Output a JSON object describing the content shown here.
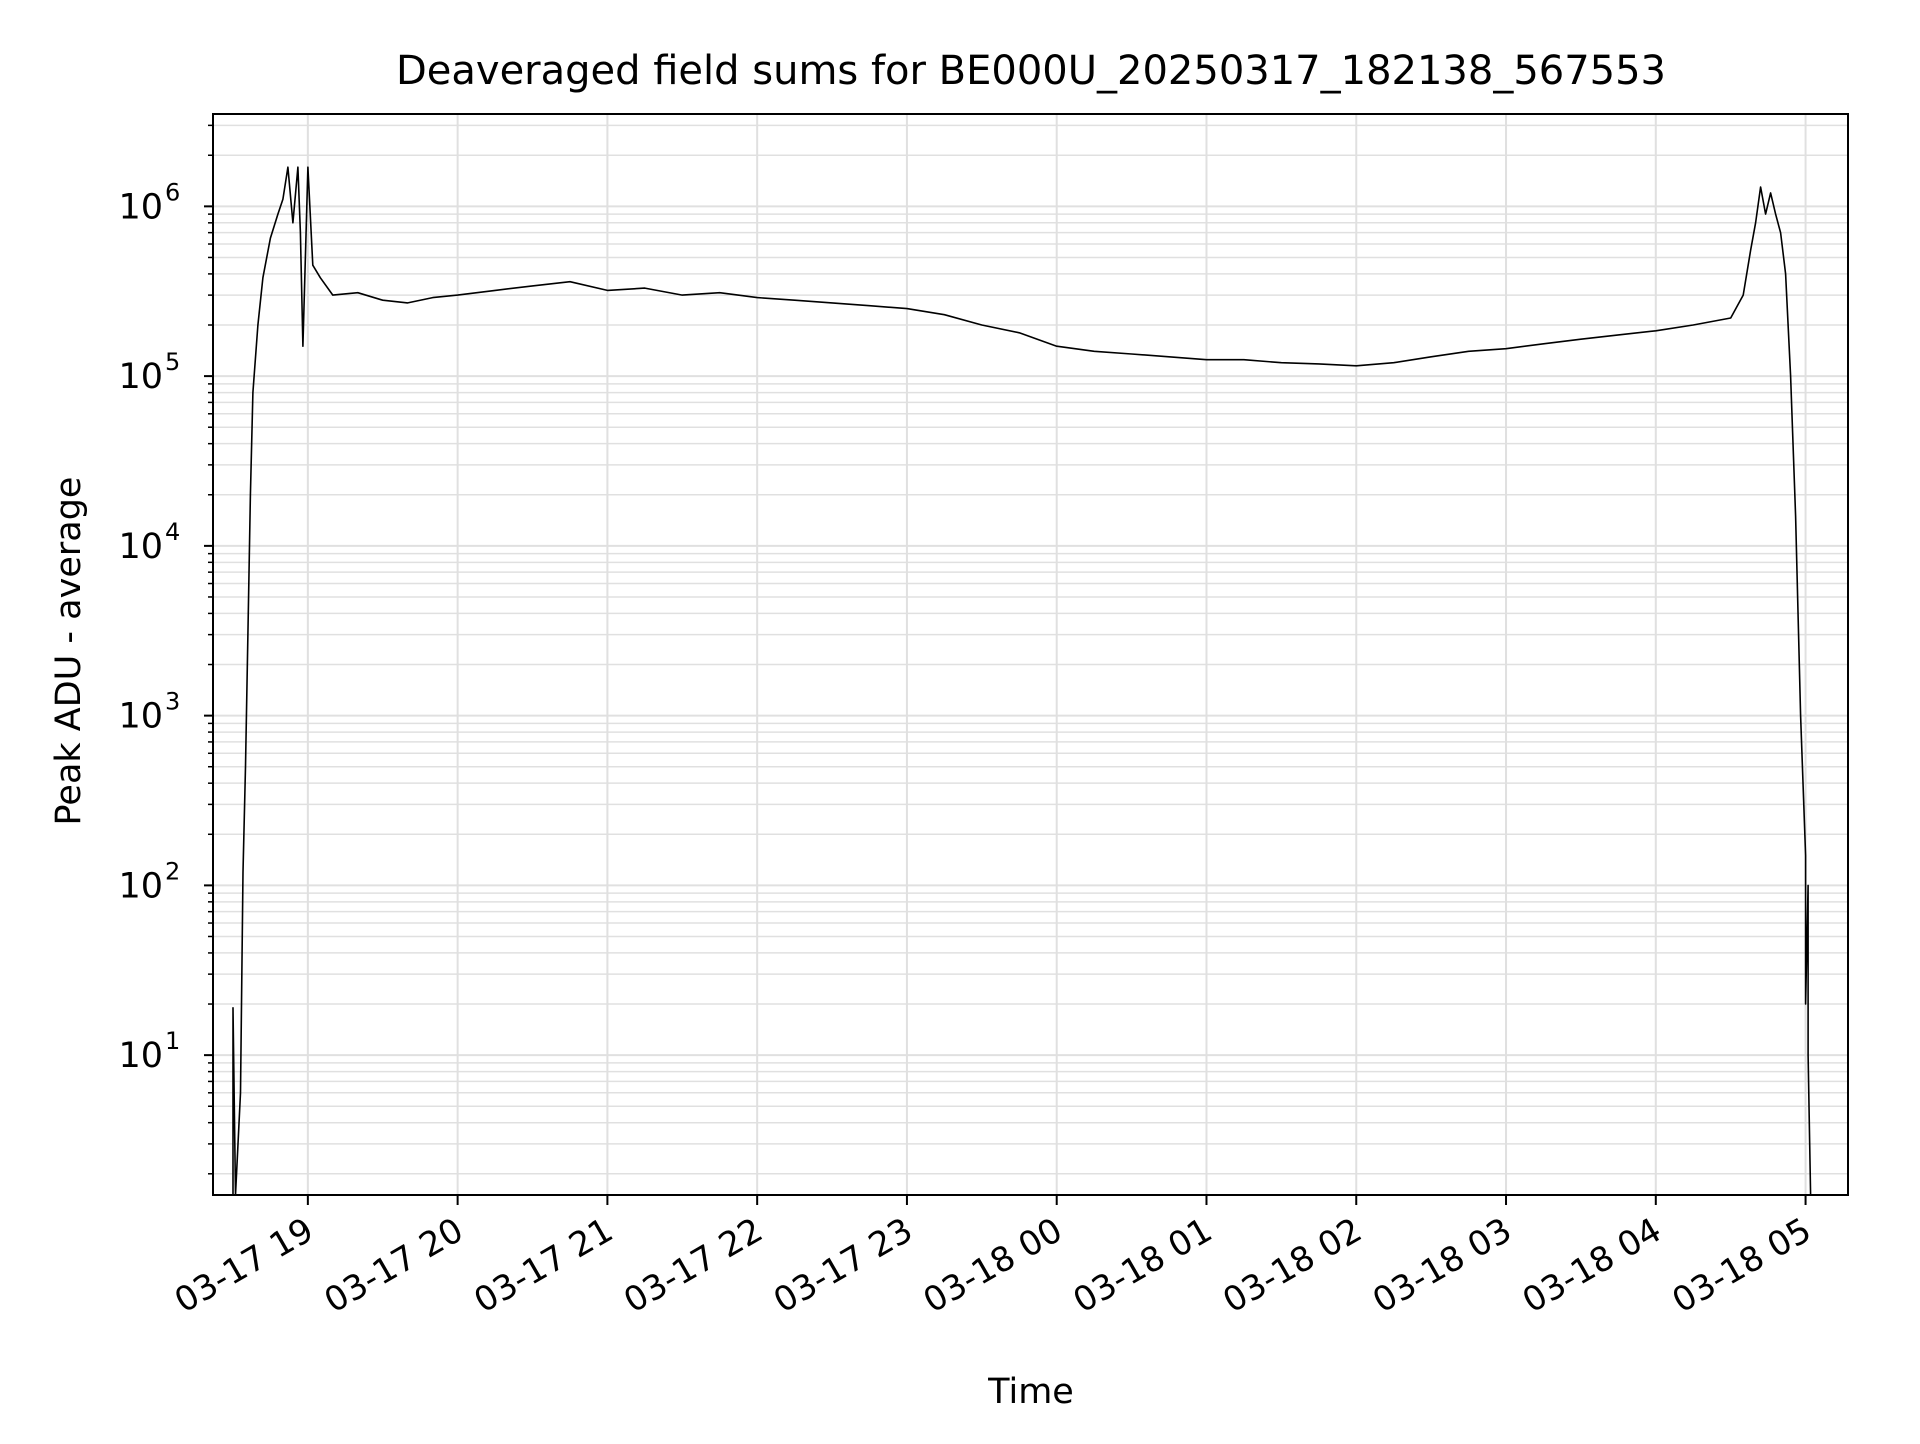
{
  "chart_data": {
    "type": "line",
    "title": "Deaveraged field sums for BE000U_20250317_182138_567553",
    "xlabel": "Time",
    "ylabel": "Peak ADU - average",
    "xlim": [
      "2025-03-17 18:22",
      "2025-03-18 05:17"
    ],
    "ylim": [
      1.5,
      3500000
    ],
    "yscale": "log",
    "grid": true,
    "grid_minor": true,
    "line_color": "#000000",
    "grid_color": "#e0e0e0",
    "x_ticks": [
      {
        "value": "2025-03-17 19:00",
        "label": "03-17 19"
      },
      {
        "value": "2025-03-17 20:00",
        "label": "03-17 20"
      },
      {
        "value": "2025-03-17 21:00",
        "label": "03-17 21"
      },
      {
        "value": "2025-03-17 22:00",
        "label": "03-17 22"
      },
      {
        "value": "2025-03-17 23:00",
        "label": "03-17 23"
      },
      {
        "value": "2025-03-18 00:00",
        "label": "03-18 00"
      },
      {
        "value": "2025-03-18 01:00",
        "label": "03-18 01"
      },
      {
        "value": "2025-03-18 02:00",
        "label": "03-18 02"
      },
      {
        "value": "2025-03-18 03:00",
        "label": "03-18 03"
      },
      {
        "value": "2025-03-18 04:00",
        "label": "03-18 04"
      },
      {
        "value": "2025-03-18 05:00",
        "label": "03-18 05"
      }
    ],
    "y_ticks": [
      {
        "value": 10,
        "base": "10",
        "exp": "1"
      },
      {
        "value": 100,
        "base": "10",
        "exp": "2"
      },
      {
        "value": 1000,
        "base": "10",
        "exp": "3"
      },
      {
        "value": 10000,
        "base": "10",
        "exp": "4"
      },
      {
        "value": 100000,
        "base": "10",
        "exp": "5"
      },
      {
        "value": 1000000,
        "base": "10",
        "exp": "6"
      }
    ],
    "series": [
      {
        "points": [
          [
            "2025-03-17 18:30",
            1.5
          ],
          [
            "2025-03-17 18:30",
            19
          ],
          [
            "2025-03-17 18:31",
            1.5
          ],
          [
            "2025-03-17 18:33",
            6
          ],
          [
            "2025-03-17 18:34",
            120
          ],
          [
            "2025-03-17 18:35",
            500
          ],
          [
            "2025-03-17 18:36",
            3000
          ],
          [
            "2025-03-17 18:37",
            20000
          ],
          [
            "2025-03-17 18:38",
            80000
          ],
          [
            "2025-03-17 18:40",
            200000
          ],
          [
            "2025-03-17 18:42",
            380000
          ],
          [
            "2025-03-17 18:45",
            650000
          ],
          [
            "2025-03-17 18:48",
            900000
          ],
          [
            "2025-03-17 18:50",
            1100000
          ],
          [
            "2025-03-17 18:52",
            1700000
          ],
          [
            "2025-03-17 18:54",
            800000
          ],
          [
            "2025-03-17 18:56",
            1700000
          ],
          [
            "2025-03-17 18:57",
            700000
          ],
          [
            "2025-03-17 18:58",
            150000
          ],
          [
            "2025-03-17 19:00",
            1700000
          ],
          [
            "2025-03-17 19:02",
            450000
          ],
          [
            "2025-03-17 19:05",
            380000
          ],
          [
            "2025-03-17 19:10",
            300000
          ],
          [
            "2025-03-17 19:20",
            310000
          ],
          [
            "2025-03-17 19:30",
            280000
          ],
          [
            "2025-03-17 19:40",
            270000
          ],
          [
            "2025-03-17 19:50",
            290000
          ],
          [
            "2025-03-17 20:00",
            300000
          ],
          [
            "2025-03-17 20:15",
            320000
          ],
          [
            "2025-03-17 20:30",
            340000
          ],
          [
            "2025-03-17 20:45",
            360000
          ],
          [
            "2025-03-17 21:00",
            320000
          ],
          [
            "2025-03-17 21:15",
            330000
          ],
          [
            "2025-03-17 21:30",
            300000
          ],
          [
            "2025-03-17 21:45",
            310000
          ],
          [
            "2025-03-17 22:00",
            290000
          ],
          [
            "2025-03-17 22:15",
            280000
          ],
          [
            "2025-03-17 22:30",
            270000
          ],
          [
            "2025-03-17 22:45",
            260000
          ],
          [
            "2025-03-17 23:00",
            250000
          ],
          [
            "2025-03-17 23:15",
            230000
          ],
          [
            "2025-03-17 23:30",
            200000
          ],
          [
            "2025-03-17 23:45",
            180000
          ],
          [
            "2025-03-18 00:00",
            150000
          ],
          [
            "2025-03-18 00:15",
            140000
          ],
          [
            "2025-03-18 00:30",
            135000
          ],
          [
            "2025-03-18 00:45",
            130000
          ],
          [
            "2025-03-18 01:00",
            125000
          ],
          [
            "2025-03-18 01:15",
            125000
          ],
          [
            "2025-03-18 01:30",
            120000
          ],
          [
            "2025-03-18 01:45",
            118000
          ],
          [
            "2025-03-18 02:00",
            115000
          ],
          [
            "2025-03-18 02:15",
            120000
          ],
          [
            "2025-03-18 02:30",
            130000
          ],
          [
            "2025-03-18 02:45",
            140000
          ],
          [
            "2025-03-18 03:00",
            145000
          ],
          [
            "2025-03-18 03:15",
            155000
          ],
          [
            "2025-03-18 03:30",
            165000
          ],
          [
            "2025-03-18 03:45",
            175000
          ],
          [
            "2025-03-18 04:00",
            185000
          ],
          [
            "2025-03-18 04:15",
            200000
          ],
          [
            "2025-03-18 04:30",
            220000
          ],
          [
            "2025-03-18 04:35",
            300000
          ],
          [
            "2025-03-18 04:38",
            550000
          ],
          [
            "2025-03-18 04:40",
            800000
          ],
          [
            "2025-03-18 04:42",
            1300000
          ],
          [
            "2025-03-18 04:44",
            900000
          ],
          [
            "2025-03-18 04:46",
            1200000
          ],
          [
            "2025-03-18 04:48",
            900000
          ],
          [
            "2025-03-18 04:50",
            700000
          ],
          [
            "2025-03-18 04:52",
            400000
          ],
          [
            "2025-03-18 04:54",
            100000
          ],
          [
            "2025-03-18 04:56",
            15000
          ],
          [
            "2025-03-18 04:58",
            1000
          ],
          [
            "2025-03-18 05:00",
            150
          ],
          [
            "2025-03-18 05:00",
            20
          ],
          [
            "2025-03-18 05:01",
            100
          ],
          [
            "2025-03-18 05:01",
            10
          ],
          [
            "2025-03-18 05:02",
            1.5
          ]
        ]
      }
    ]
  }
}
